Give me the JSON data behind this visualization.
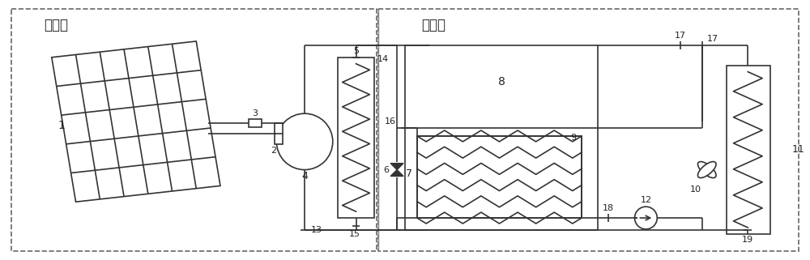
{
  "bg_color": "#ffffff",
  "lc": "#333333",
  "lw": 1.2,
  "label_outdoor": "室外侧",
  "label_indoor": "室内侧",
  "fig_width": 10.0,
  "fig_height": 3.21,
  "dpi": 100
}
